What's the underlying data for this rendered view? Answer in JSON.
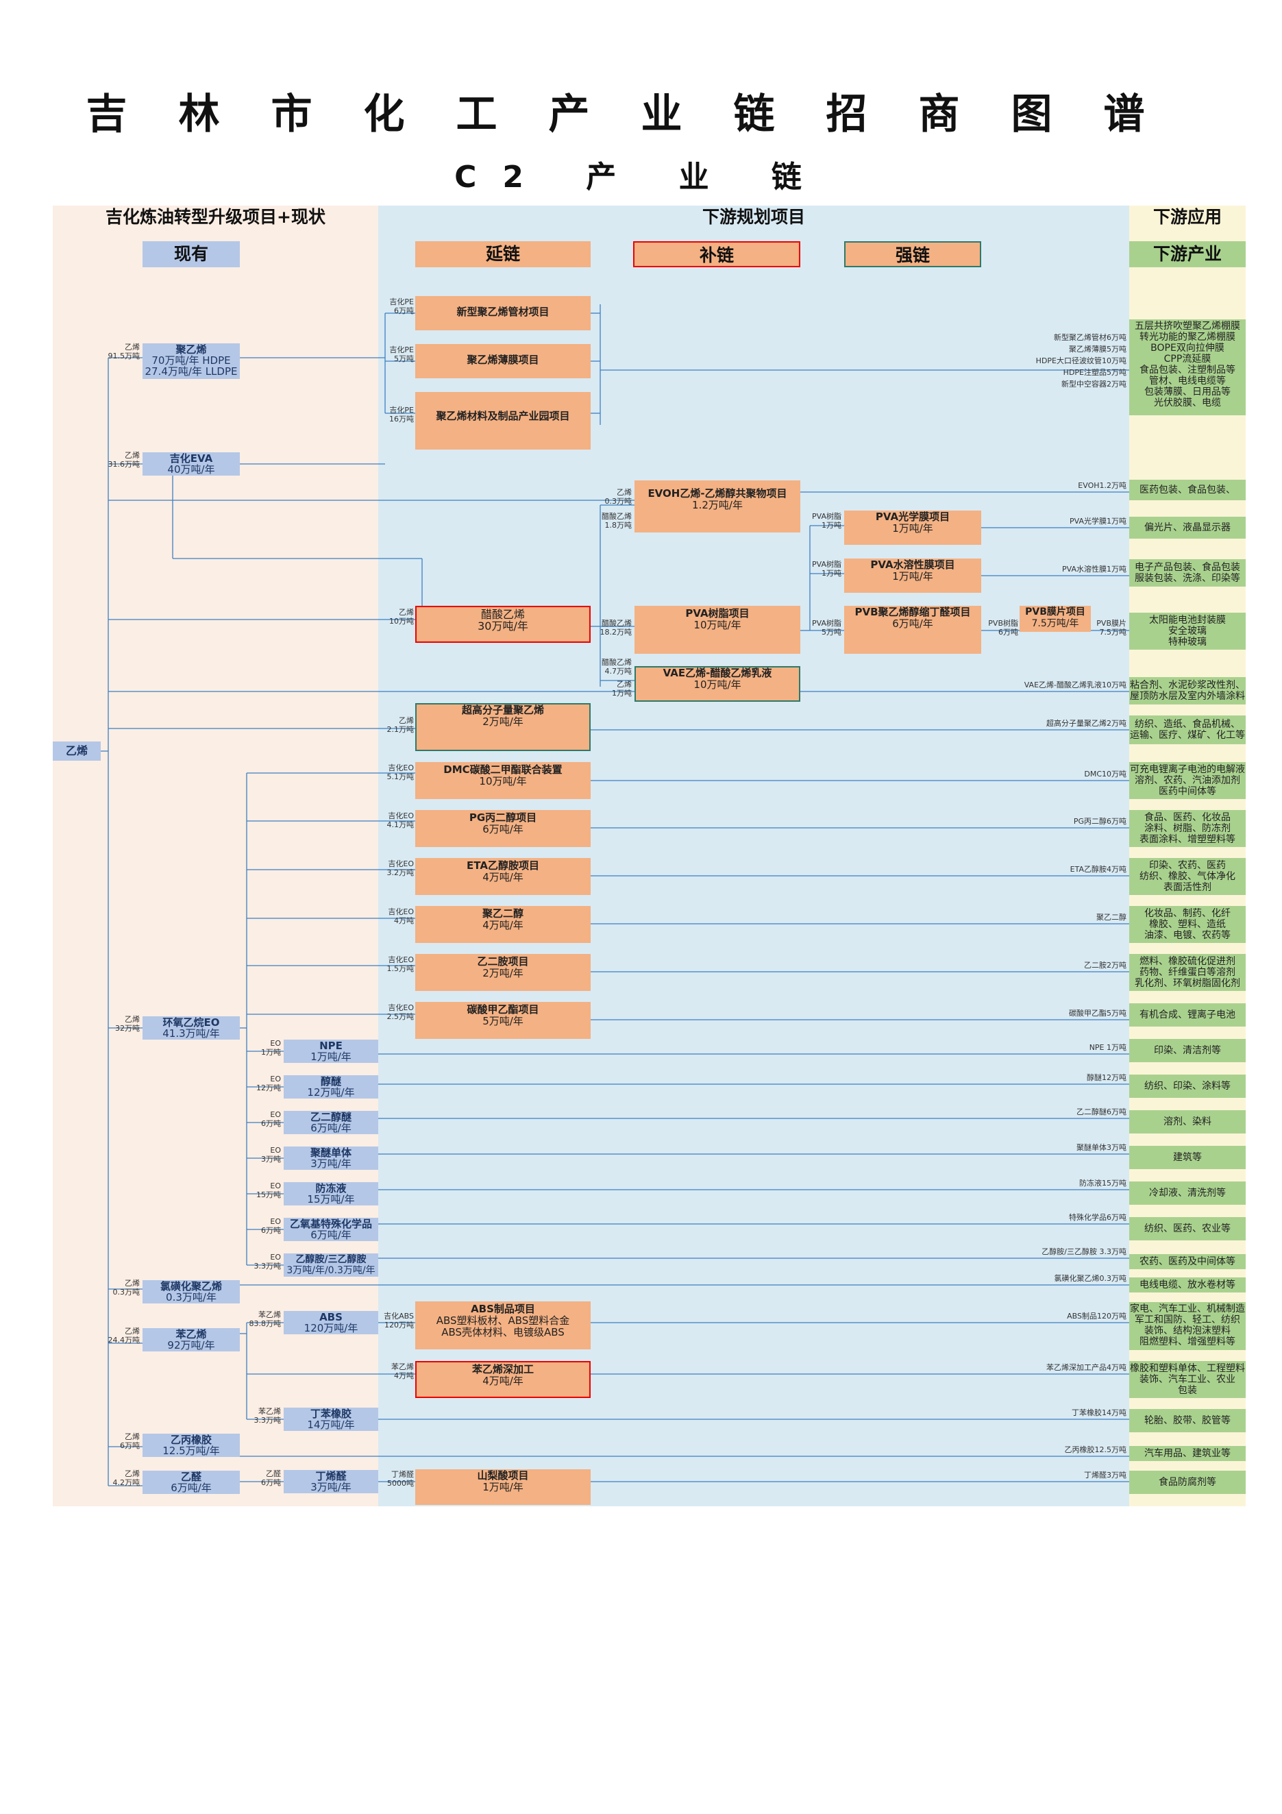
{
  "title": "吉林市化工产业链招商图谱",
  "subtitle": "C2 产 业 链",
  "sections": {
    "left": "吉化炼油转型升级项目+现状",
    "mid": "下游规划项目",
    "right": "下游应用"
  },
  "headers": {
    "existing": "现有",
    "extend": "延链",
    "supplement": "补链",
    "strengthen": "强链",
    "industry": "下游产业"
  },
  "root": "乙烯",
  "colors": {
    "left_bg": "#fbeee4",
    "mid_bg": "#d9eaf3",
    "right_bg": "#fbf5d8",
    "blue_box": "#b4c7e7",
    "orange_box": "#f4b183",
    "green_box": "#a9d18e",
    "line": "#3d7fc1",
    "supplement_border": "#e00000",
    "strengthen_border": "#2d7a6a"
  },
  "existing": [
    {
      "sl1": "乙烯",
      "sl2": "91.5万吨",
      "name": "聚乙烯",
      "l2": "70万吨/年  HDPE",
      "l3": "27.4万吨/年 LLDPE"
    },
    {
      "sl1": "乙烯",
      "sl2": "31.6万吨",
      "name": "吉化EVA",
      "l2": "40万吨/年",
      "l3": ""
    },
    {
      "sl1": "乙烯",
      "sl2": "32万吨",
      "name": "环氧乙烷EO",
      "l2": "41.3万吨/年",
      "l3": ""
    },
    {
      "sl1": "乙烯",
      "sl2": "0.3万吨",
      "name": "氯磺化聚乙烯",
      "l2": "0.3万吨/年",
      "l3": ""
    },
    {
      "sl1": "乙烯",
      "sl2": "24.4万吨",
      "name": "苯乙烯",
      "l2": "92万吨/年",
      "l3": ""
    },
    {
      "sl1": "乙烯",
      "sl2": "6万吨",
      "name": "乙丙橡胶",
      "l2": "12.5万吨/年",
      "l3": ""
    },
    {
      "sl1": "乙烯",
      "sl2": "4.2万吨",
      "name": "乙醛",
      "l2": "6万吨/年",
      "l3": ""
    }
  ],
  "eo_products": [
    {
      "sl1": "EO",
      "sl2": "1万吨",
      "name": "NPE",
      "l2": "1万吨/年"
    },
    {
      "sl1": "EO",
      "sl2": "12万吨",
      "name": "醇醚",
      "l2": "12万吨/年"
    },
    {
      "sl1": "EO",
      "sl2": "6万吨",
      "name": "乙二醇醚",
      "l2": "6万吨/年"
    },
    {
      "sl1": "EO",
      "sl2": "3万吨",
      "name": "聚醚单体",
      "l2": "3万吨/年"
    },
    {
      "sl1": "EO",
      "sl2": "15万吨",
      "name": "防冻液",
      "l2": "15万吨/年"
    },
    {
      "sl1": "EO",
      "sl2": "6万吨",
      "name": "乙氧基特殊化学品",
      "l2": "6万吨/年"
    },
    {
      "sl1": "EO",
      "sl2": "3.3万吨",
      "name": "乙醇胺/三乙醇胺",
      "l2": "3万吨/年/0.3万吨/年"
    }
  ],
  "other_mid": [
    {
      "sl1": "苯乙烯",
      "sl2": "83.8万吨",
      "name": "ABS",
      "l2": "120万吨/年"
    },
    {
      "sl1": "苯乙烯",
      "sl2": "3.3万吨",
      "name": "丁苯橡胶",
      "l2": "14万吨/年"
    },
    {
      "sl1": "乙醛",
      "sl2": "6万吨",
      "name": "丁烯醛",
      "l2": "3万吨/年"
    }
  ],
  "pe_projects": [
    {
      "sl1": "吉化PE",
      "sl2": "6万吨",
      "name": "新型聚乙烯管材项目"
    },
    {
      "sl1": "吉化PE",
      "sl2": "5万吨",
      "name": "聚乙烯薄膜项目"
    },
    {
      "sl1": "吉化PE",
      "sl2": "16万吨",
      "name": "聚乙烯材料及制品产业园项目"
    }
  ],
  "projects": [
    {
      "sl1": "乙烯",
      "sl2": "0.3万吨",
      "sl3": "醋酸乙烯",
      "sl4": "1.8万吨",
      "name": "EVOH乙烯-乙烯醇共聚物项目",
      "l2": "1.2万吨/年"
    },
    {
      "sl1": "乙烯",
      "sl2": "10万吨",
      "name": "醋酸乙烯",
      "l2": "30万吨/年"
    },
    {
      "sl1": "醋酸乙烯",
      "sl2": "18.2万吨",
      "name": "PVA树脂项目",
      "l2": "10万吨/年"
    },
    {
      "sl1": "醋酸乙烯",
      "sl2": "4.7万吨",
      "sl3": "乙烯",
      "sl4": "1万吨",
      "name": "VAE乙烯-醋酸乙烯乳液",
      "l2": "10万吨/年"
    },
    {
      "sl1": "PVA树脂",
      "sl2": "1万吨",
      "name": "PVA光学膜项目",
      "l2": "1万吨/年"
    },
    {
      "sl1": "PVA树脂",
      "sl2": "1万吨",
      "name": "PVA水溶性膜项目",
      "l2": "1万吨/年"
    },
    {
      "sl1": "PVA树脂",
      "sl2": "5万吨",
      "name": "PVB聚乙烯醇缩丁醛项目",
      "l2": "6万吨/年"
    },
    {
      "sl1": "PVB树脂",
      "sl2": "6万吨",
      "name": "PVB膜片项目",
      "l2": "7.5万吨/年"
    },
    {
      "sl1": "乙烯",
      "sl2": "2.1万吨",
      "name": "超高分子量聚乙烯",
      "l2": "2万吨/年"
    },
    {
      "sl1": "吉化EO",
      "sl2": "5.1万吨",
      "name": "DMC碳酸二甲酯联合装置",
      "l2": "10万吨/年"
    },
    {
      "sl1": "吉化EO",
      "sl2": "4.1万吨",
      "name": "PG丙二醇项目",
      "l2": "6万吨/年"
    },
    {
      "sl1": "吉化EO",
      "sl2": "3.2万吨",
      "name": "ETA乙醇胺项目",
      "l2": "4万吨/年"
    },
    {
      "sl1": "吉化EO",
      "sl2": "4万吨",
      "name": "聚乙二醇",
      "l2": "4万吨/年"
    },
    {
      "sl1": "吉化EO",
      "sl2": "1.5万吨",
      "name": "乙二胺项目",
      "l2": "2万吨/年"
    },
    {
      "sl1": "吉化EO",
      "sl2": "2.5万吨",
      "name": "碳酸甲乙酯项目",
      "l2": "5万吨/年"
    },
    {
      "sl1": "吉化ABS",
      "sl2": "120万吨",
      "name": "ABS制品项目",
      "l2": "ABS塑料板材、ABS塑料合金",
      "l3": "ABS壳体材料、电镀级ABS"
    },
    {
      "sl1": "苯乙烯",
      "sl2": "4万吨",
      "name": "苯乙烯深加工",
      "l2": "4万吨/年"
    },
    {
      "sl1": "丁烯醛",
      "sl2": "5000吨",
      "name": "山梨酸项目",
      "l2": "1万吨/年"
    }
  ],
  "pvb_film_side": {
    "l1": "PVB膜片",
    "l2": "7.5万吨"
  },
  "usage_pe": [
    "新型聚乙烯管材6万吨",
    "聚乙烯薄膜5万吨",
    "HDPE大口径波纹管10万吨",
    "HDPE注塑品5万吨",
    "新型中空容器2万吨"
  ],
  "usage": [
    "EVOH1.2万吨",
    "PVA光学膜1万吨",
    "PVA水溶性膜1万吨",
    "VAE乙烯-醋酸乙烯乳液10万吨",
    "超高分子量聚乙烯2万吨",
    "DMC10万吨",
    "PG丙二醇6万吨",
    "ETA乙醇胺4万吨",
    "聚乙二醇",
    "乙二胺2万吨",
    "碳酸甲乙酯5万吨",
    "NPE 1万吨",
    "醇醚12万吨",
    "乙二醇醚6万吨",
    "聚醚单体3万吨",
    "防冻液15万吨",
    "特殊化学品6万吨",
    "乙醇胺/三乙醇胺 3.3万吨",
    "氯磺化聚乙烯0.3万吨",
    "ABS制品120万吨",
    "苯乙烯深加工产品4万吨",
    "丁苯橡胶14万吨",
    "乙丙橡胶12.5万吨",
    "丁烯醛3万吨"
  ],
  "industries": [
    [
      "五层共挤吹塑聚乙烯棚膜",
      "转光功能的聚乙烯棚膜",
      "BOPE双向拉伸膜",
      "CPP流延膜",
      "食品包装、注塑制品等",
      "管材、电线电缆等",
      "包装薄膜、日用品等",
      "光伏胶膜、电缆"
    ],
    [
      "医药包装、食品包装、"
    ],
    [
      "偏光片、液晶显示器"
    ],
    [
      "电子产品包装、食品包装",
      "服装包装、洗涤、印染等"
    ],
    [
      "太阳能电池封装膜",
      "安全玻璃",
      "特种玻璃"
    ],
    [
      "粘合剂、水泥砂浆改性剂、",
      "屋顶防水层及室内外墙涂料"
    ],
    [
      "纺织、造纸、食品机械、",
      "运输、医疗、煤矿、化工等"
    ],
    [
      "可充电锂离子电池的电解液",
      "溶剂、农药、汽油添加剂",
      "医药中间体等"
    ],
    [
      "食品、医药、化妆品",
      "涂料、树脂、防冻剂",
      "表面涂料、增塑塑料等"
    ],
    [
      "印染、农药、医药",
      "纺织、橡胶、气体净化",
      "表面活性剂"
    ],
    [
      "化妆品、制药、化纤",
      "橡胶、塑料、造纸",
      "油漆、电镀、农药等"
    ],
    [
      "燃料、橡胶硫化促进剂",
      "药物、纤维蛋白等溶剂",
      "乳化剂、环氧树脂固化剂"
    ],
    [
      "有机合成、锂离子电池"
    ],
    [
      "印染、清洁剂等"
    ],
    [
      "纺织、印染、涂料等"
    ],
    [
      "溶剂、染料"
    ],
    [
      "建筑等"
    ],
    [
      "冷却液、清洗剂等"
    ],
    [
      "纺织、医药、农业等"
    ],
    [
      "农药、医药及中间体等"
    ],
    [
      "电线电缆、放水卷材等"
    ],
    [
      "家电、汽车工业、机械制造",
      "军工和国防、轻工、纺织",
      "装饰、结构泡沫塑料",
      "阻燃塑料、增强塑料等"
    ],
    [
      "橡胶和塑料单体、工程塑料",
      "装饰、汽车工业、农业",
      "包装"
    ],
    [
      "轮胎、胶带、胶管等"
    ],
    [
      "汽车用品、建筑业等"
    ],
    [
      "食品防腐剂等"
    ]
  ]
}
